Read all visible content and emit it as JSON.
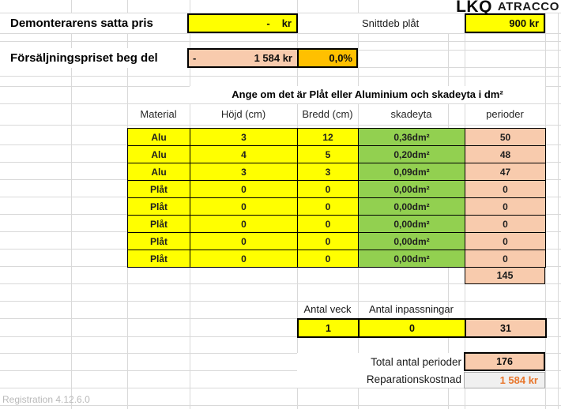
{
  "logo": {
    "lkq": "LKQ",
    "atracco": "ATRACCO"
  },
  "pricing": {
    "demonterarens": {
      "label": "Demonterarens satta pris",
      "dash": "-",
      "unit": "kr"
    },
    "snittdeb": {
      "label": "Snittdeb plåt",
      "value": "900 kr"
    },
    "forsaljning": {
      "label": "Försäljningspriset beg del",
      "dash": "-",
      "value": "1 584 kr",
      "percent": "0,0%"
    }
  },
  "damage": {
    "title": "Ange om det är Plåt eller Aluminium och skadeyta i dm²",
    "headers": [
      "Material",
      "Höjd (cm)",
      "Bredd (cm)",
      "skadeyta",
      "perioder"
    ],
    "rows": [
      {
        "material": "Alu",
        "hojd": "3",
        "bredd": "12",
        "skadeyta": "0,36dm²",
        "perioder": "50"
      },
      {
        "material": "Alu",
        "hojd": "4",
        "bredd": "5",
        "skadeyta": "0,20dm²",
        "perioder": "48"
      },
      {
        "material": "Alu",
        "hojd": "3",
        "bredd": "3",
        "skadeyta": "0,09dm²",
        "perioder": "47"
      },
      {
        "material": "Plåt",
        "hojd": "0",
        "bredd": "0",
        "skadeyta": "0,00dm²",
        "perioder": "0"
      },
      {
        "material": "Plåt",
        "hojd": "0",
        "bredd": "0",
        "skadeyta": "0,00dm²",
        "perioder": "0"
      },
      {
        "material": "Plåt",
        "hojd": "0",
        "bredd": "0",
        "skadeyta": "0,00dm²",
        "perioder": "0"
      },
      {
        "material": "Plåt",
        "hojd": "0",
        "bredd": "0",
        "skadeyta": "0,00dm²",
        "perioder": "0"
      },
      {
        "material": "Plåt",
        "hojd": "0",
        "bredd": "0",
        "skadeyta": "0,00dm²",
        "perioder": "0"
      }
    ],
    "perioder_sum": "145"
  },
  "adjustments": {
    "veck_label": "Antal veck",
    "inpass_label": "Antal inpassningar",
    "veck_value": "1",
    "inpass_value": "0",
    "perioder_value": "31"
  },
  "totals": {
    "total_label": "Total antal perioder",
    "total_value": "176",
    "repair_label": "Reparationskostnad",
    "repair_value": "1 584 kr"
  },
  "footer": {
    "registration": "Registration 4.12.6.0"
  },
  "colors": {
    "input_yellow": "#FFFF00",
    "computed_peach": "#F8CBAD",
    "area_green": "#92D050",
    "percent_orange": "#FFC000",
    "repair_text_orange": "#E8762C",
    "gridline": "#D9D9D9"
  }
}
